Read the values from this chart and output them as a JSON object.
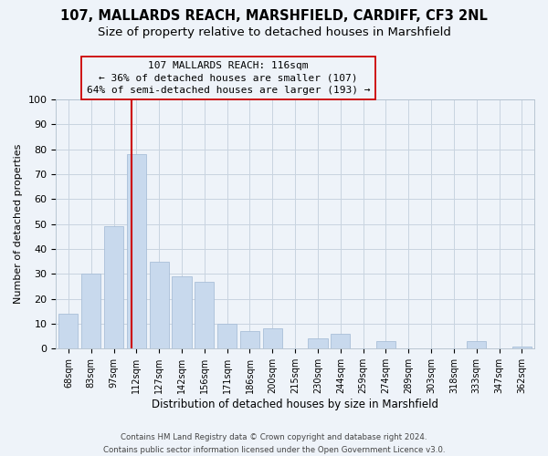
{
  "title_line1": "107, MALLARDS REACH, MARSHFIELD, CARDIFF, CF3 2NL",
  "title_line2": "Size of property relative to detached houses in Marshfield",
  "xlabel": "Distribution of detached houses by size in Marshfield",
  "ylabel": "Number of detached properties",
  "bar_labels": [
    "68sqm",
    "83sqm",
    "97sqm",
    "112sqm",
    "127sqm",
    "142sqm",
    "156sqm",
    "171sqm",
    "186sqm",
    "200sqm",
    "215sqm",
    "230sqm",
    "244sqm",
    "259sqm",
    "274sqm",
    "289sqm",
    "303sqm",
    "318sqm",
    "333sqm",
    "347sqm",
    "362sqm"
  ],
  "bar_values": [
    14,
    30,
    49,
    78,
    35,
    29,
    27,
    10,
    7,
    8,
    0,
    4,
    6,
    0,
    3,
    0,
    0,
    0,
    3,
    0,
    1
  ],
  "bar_color": "#c8d9ed",
  "bar_edge_color": "#aabfd8",
  "vline_index": 3,
  "vline_color": "#cc0000",
  "annotation_line1": "107 MALLARDS REACH: 116sqm",
  "annotation_line2": "← 36% of detached houses are smaller (107)",
  "annotation_line3": "64% of semi-detached houses are larger (193) →",
  "annotation_box_edge": "#cc0000",
  "ylim": [
    0,
    100
  ],
  "yticks": [
    0,
    10,
    20,
    30,
    40,
    50,
    60,
    70,
    80,
    90,
    100
  ],
  "grid_color": "#c8d4e0",
  "footer_line1": "Contains HM Land Registry data © Crown copyright and database right 2024.",
  "footer_line2": "Contains public sector information licensed under the Open Government Licence v3.0.",
  "bg_color": "#eef3f9",
  "title_fontsize": 10.5,
  "subtitle_fontsize": 9.5,
  "bar_width": 0.85
}
